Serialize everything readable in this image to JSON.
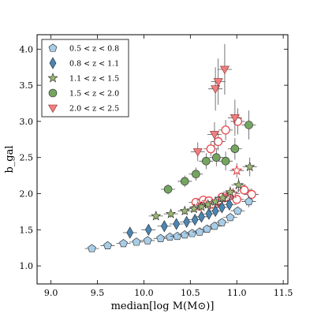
{
  "chart_data": {
    "type": "scatter",
    "xlabel": "median[log M(M⊙)]",
    "ylabel": "b_gal",
    "xlim": [
      8.85,
      11.55
    ],
    "ylim": [
      0.75,
      4.2
    ],
    "xticks": [
      9.0,
      9.5,
      10.0,
      10.5,
      11.0,
      11.5
    ],
    "yticks": [
      1.0,
      1.5,
      2.0,
      2.5,
      3.0,
      3.5,
      4.0
    ],
    "xtick_labels": [
      "9.0",
      "9.5",
      "10.0",
      "10.5",
      "11.0",
      "11.5"
    ],
    "ytick_labels": [
      "1.0",
      "1.5",
      "2.0",
      "2.5",
      "3.0",
      "3.5",
      "4.0"
    ],
    "grid": false,
    "legend_position": "top-left",
    "series": [
      {
        "name": "0.5 < z < 0.8",
        "marker": "pentagon",
        "color": "#a8cde8",
        "points": [
          {
            "x": 9.44,
            "y": 1.24,
            "ey": 0.03
          },
          {
            "x": 9.61,
            "y": 1.28,
            "ey": 0.03
          },
          {
            "x": 9.78,
            "y": 1.31,
            "ey": 0.03
          },
          {
            "x": 9.92,
            "y": 1.33,
            "ey": 0.03
          },
          {
            "x": 10.04,
            "y": 1.35,
            "ey": 0.03
          },
          {
            "x": 10.18,
            "y": 1.38,
            "ey": 0.03
          },
          {
            "x": 10.28,
            "y": 1.4,
            "ey": 0.03
          },
          {
            "x": 10.36,
            "y": 1.41,
            "ey": 0.03
          },
          {
            "x": 10.44,
            "y": 1.43,
            "ey": 0.03
          },
          {
            "x": 10.52,
            "y": 1.45,
            "ey": 0.03
          },
          {
            "x": 10.6,
            "y": 1.47,
            "ey": 0.03
          },
          {
            "x": 10.68,
            "y": 1.51,
            "ey": 0.04
          },
          {
            "x": 10.76,
            "y": 1.55,
            "ey": 0.04
          },
          {
            "x": 10.84,
            "y": 1.6,
            "ey": 0.05
          },
          {
            "x": 10.93,
            "y": 1.67,
            "ey": 0.05
          },
          {
            "x": 11.01,
            "y": 1.76,
            "ey": 0.06
          },
          {
            "x": 11.13,
            "y": 1.89,
            "ey": 0.08
          }
        ]
      },
      {
        "name": "0.8 < z < 1.1",
        "marker": "diamond",
        "color": "#4a86b5",
        "points": [
          {
            "x": 9.85,
            "y": 1.46,
            "ey": 0.05
          },
          {
            "x": 10.05,
            "y": 1.5,
            "ey": 0.05
          },
          {
            "x": 10.22,
            "y": 1.55,
            "ey": 0.05
          },
          {
            "x": 10.35,
            "y": 1.58,
            "ey": 0.05
          },
          {
            "x": 10.46,
            "y": 1.61,
            "ey": 0.05
          },
          {
            "x": 10.55,
            "y": 1.64,
            "ey": 0.05
          },
          {
            "x": 10.62,
            "y": 1.68,
            "ey": 0.06
          },
          {
            "x": 10.7,
            "y": 1.72,
            "ey": 0.06
          },
          {
            "x": 10.77,
            "y": 1.76,
            "ey": 0.06
          },
          {
            "x": 10.84,
            "y": 1.81,
            "ey": 0.07
          },
          {
            "x": 10.92,
            "y": 1.85,
            "ey": 0.08
          }
        ]
      },
      {
        "name": "1.1 < z < 1.5",
        "marker": "star",
        "color": "#9bb872",
        "points": [
          {
            "x": 10.13,
            "y": 1.69,
            "ey": 0.05
          },
          {
            "x": 10.29,
            "y": 1.72,
            "ey": 0.05
          },
          {
            "x": 10.44,
            "y": 1.76,
            "ey": 0.05
          },
          {
            "x": 10.54,
            "y": 1.79,
            "ey": 0.05
          },
          {
            "x": 10.62,
            "y": 1.82,
            "ey": 0.05
          },
          {
            "x": 10.69,
            "y": 1.85,
            "ey": 0.06
          },
          {
            "x": 10.77,
            "y": 1.89,
            "ey": 0.06
          },
          {
            "x": 10.85,
            "y": 1.94,
            "ey": 0.07
          },
          {
            "x": 10.93,
            "y": 2.02,
            "ey": 0.08
          },
          {
            "x": 11.02,
            "y": 2.12,
            "ey": 0.1
          },
          {
            "x": 11.14,
            "y": 2.37,
            "ey": 0.13
          }
        ]
      },
      {
        "name": "1.5 < z < 2.0",
        "marker": "circle",
        "color": "#74a560",
        "points": [
          {
            "x": 10.26,
            "y": 2.06,
            "ey": 0.07
          },
          {
            "x": 10.44,
            "y": 2.17,
            "ey": 0.08
          },
          {
            "x": 10.56,
            "y": 2.27,
            "ey": 0.09
          },
          {
            "x": 10.67,
            "y": 2.45,
            "ey": 0.11
          },
          {
            "x": 10.78,
            "y": 2.5,
            "ey": 0.12
          },
          {
            "x": 10.88,
            "y": 2.45,
            "ey": 0.13
          },
          {
            "x": 10.98,
            "y": 2.62,
            "ey": 0.15
          },
          {
            "x": 11.13,
            "y": 2.95,
            "ey": 0.2
          }
        ]
      },
      {
        "name": "2.0 < z < 2.5",
        "marker": "triangle-down",
        "color": "#ef7f80",
        "points": [
          {
            "x": 10.58,
            "y": 2.58,
            "ey": 0.13
          },
          {
            "x": 10.76,
            "y": 2.82,
            "ey": 0.17
          },
          {
            "x": 10.98,
            "y": 3.05,
            "ey": 0.25
          },
          {
            "x": 10.77,
            "y": 3.45,
            "ey": 0.3
          },
          {
            "x": 10.8,
            "y": 3.55,
            "ey": 0.32
          },
          {
            "x": 10.87,
            "y": 3.72,
            "ey": 0.35
          }
        ]
      },
      {
        "name": "",
        "marker": "circle-open",
        "color": "#e8474d",
        "legend": false,
        "points": [
          {
            "x": 10.56,
            "y": 1.88,
            "ey": 0.05
          },
          {
            "x": 10.64,
            "y": 1.91,
            "ey": 0.05
          },
          {
            "x": 10.7,
            "y": 1.9,
            "ey": 0.05
          },
          {
            "x": 10.77,
            "y": 1.86,
            "ey": 0.05
          },
          {
            "x": 10.84,
            "y": 1.95,
            "ey": 0.06
          },
          {
            "x": 10.92,
            "y": 1.97,
            "ey": 0.06
          },
          {
            "x": 11.0,
            "y": 1.92,
            "ey": 0.06
          },
          {
            "x": 11.08,
            "y": 2.05,
            "ey": 0.07
          },
          {
            "x": 11.16,
            "y": 1.99,
            "ey": 0.08
          },
          {
            "x": 10.72,
            "y": 2.62,
            "ey": 0.1
          },
          {
            "x": 10.8,
            "y": 2.72,
            "ey": 0.12
          },
          {
            "x": 10.88,
            "y": 2.88,
            "ey": 0.14
          },
          {
            "x": 11.01,
            "y": 3.0,
            "ey": 0.18
          }
        ]
      },
      {
        "name": "",
        "marker": "star-open",
        "color": "#e8474d",
        "legend": false,
        "points": [
          {
            "x": 10.58,
            "y": 1.82,
            "ey": 0.05
          },
          {
            "x": 10.66,
            "y": 1.86,
            "ey": 0.05
          },
          {
            "x": 10.74,
            "y": 1.84,
            "ey": 0.05
          },
          {
            "x": 10.82,
            "y": 1.89,
            "ey": 0.06
          },
          {
            "x": 10.9,
            "y": 1.94,
            "ey": 0.06
          },
          {
            "x": 11.0,
            "y": 2.32,
            "ey": 0.1
          },
          {
            "x": 10.96,
            "y": 2.0,
            "ey": 0.07
          }
        ]
      }
    ]
  }
}
